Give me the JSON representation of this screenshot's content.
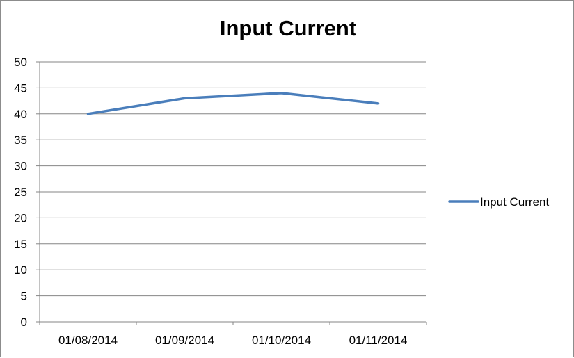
{
  "chart_data": {
    "type": "line",
    "title": "Input Current",
    "xlabel": "",
    "ylabel": "",
    "categories": [
      "01/08/2014",
      "01/09/2014",
      "01/10/2014",
      "01/11/2014"
    ],
    "series": [
      {
        "name": "Input Current",
        "values": [
          40,
          43,
          44,
          42
        ],
        "color": "#4a7ebb"
      }
    ],
    "ylim": [
      0,
      50
    ],
    "y_ticks": [
      0,
      5,
      10,
      15,
      20,
      25,
      30,
      35,
      40,
      45,
      50
    ],
    "grid": true,
    "legend_position": "right"
  }
}
